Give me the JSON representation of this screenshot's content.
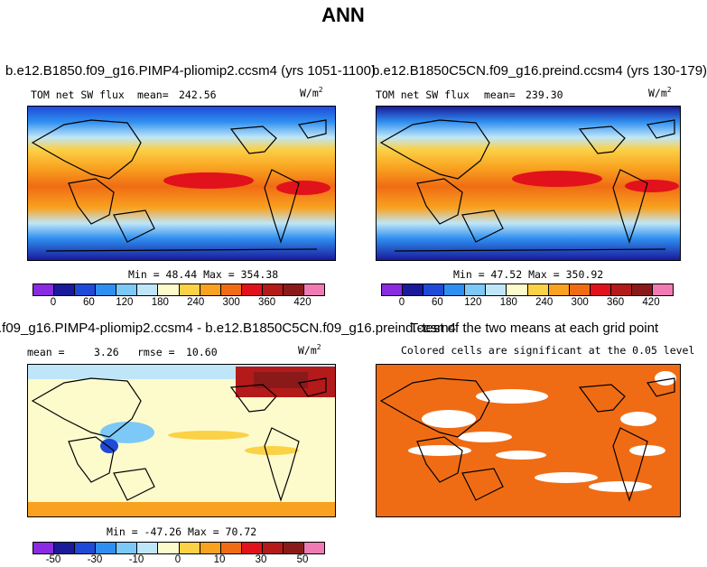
{
  "page": {
    "title": "ANN"
  },
  "colors": {
    "ocean_orange": "#f06c14",
    "scale": [
      "#8a2be2",
      "#1a1a9a",
      "#1f4ad8",
      "#2f8ff0",
      "#7cc8f6",
      "#bfe6f8",
      "#fdfbcc",
      "#fbd146",
      "#f9a220",
      "#f06c14",
      "#e1121b",
      "#b41a1a",
      "#8a1a1a",
      "#f07ab4"
    ],
    "diff_scale": [
      "#8a2be2",
      "#1a1a9a",
      "#1f4ad8",
      "#2f8ff0",
      "#7cc8f6",
      "#bfe6f8",
      "#fdfbcc",
      "#fbd146",
      "#f9a220",
      "#f06c14",
      "#e1121b",
      "#b41a1a",
      "#8a1a1a",
      "#f07ab4"
    ]
  },
  "chart_data": [
    {
      "type": "heatmap",
      "title": "b.e12.B1850.f09_g16.PIMP4-pliomip2.ccsm4 (yrs 1051-1100)",
      "variable": "TOM net SW flux",
      "mean_label": "mean=",
      "mean": "242.56",
      "units": "W/m",
      "units_sup": "2",
      "stats": "Min =  48.44 Max = 354.38",
      "colorbar_ticks": [
        "0",
        "60",
        "120",
        "180",
        "240",
        "300",
        "360",
        "420"
      ]
    },
    {
      "type": "heatmap",
      "title": "b.e12.B1850C5CN.f09_g16.preind.ccsm4 (yrs 130-179)",
      "variable": "TOM net SW flux",
      "mean_label": "mean=",
      "mean": "239.30",
      "units": "W/m",
      "units_sup": "2",
      "stats": "Min =  47.52 Max = 350.92",
      "colorbar_ticks": [
        "0",
        "60",
        "120",
        "180",
        "240",
        "300",
        "360",
        "420"
      ]
    },
    {
      "type": "heatmap",
      "title": ".f09_g16.PIMP4-pliomip2.ccsm4 - b.e12.B1850C5CN.f09_g16.preind.ccsm4",
      "mean_label": "mean =",
      "mean": "3.26",
      "rmse_label": "rmse =",
      "rmse": "10.60",
      "units": "W/m",
      "units_sup": "2",
      "stats": "Min = -47.26 Max =  70.72",
      "colorbar_ticks": [
        "-50",
        "-30",
        "-10",
        "0",
        "10",
        "30",
        "50"
      ]
    },
    {
      "type": "heatmap",
      "title": "T-test of the two means at each grid point",
      "subtitle": "Colored cells are significant at the 0.05 level"
    }
  ]
}
